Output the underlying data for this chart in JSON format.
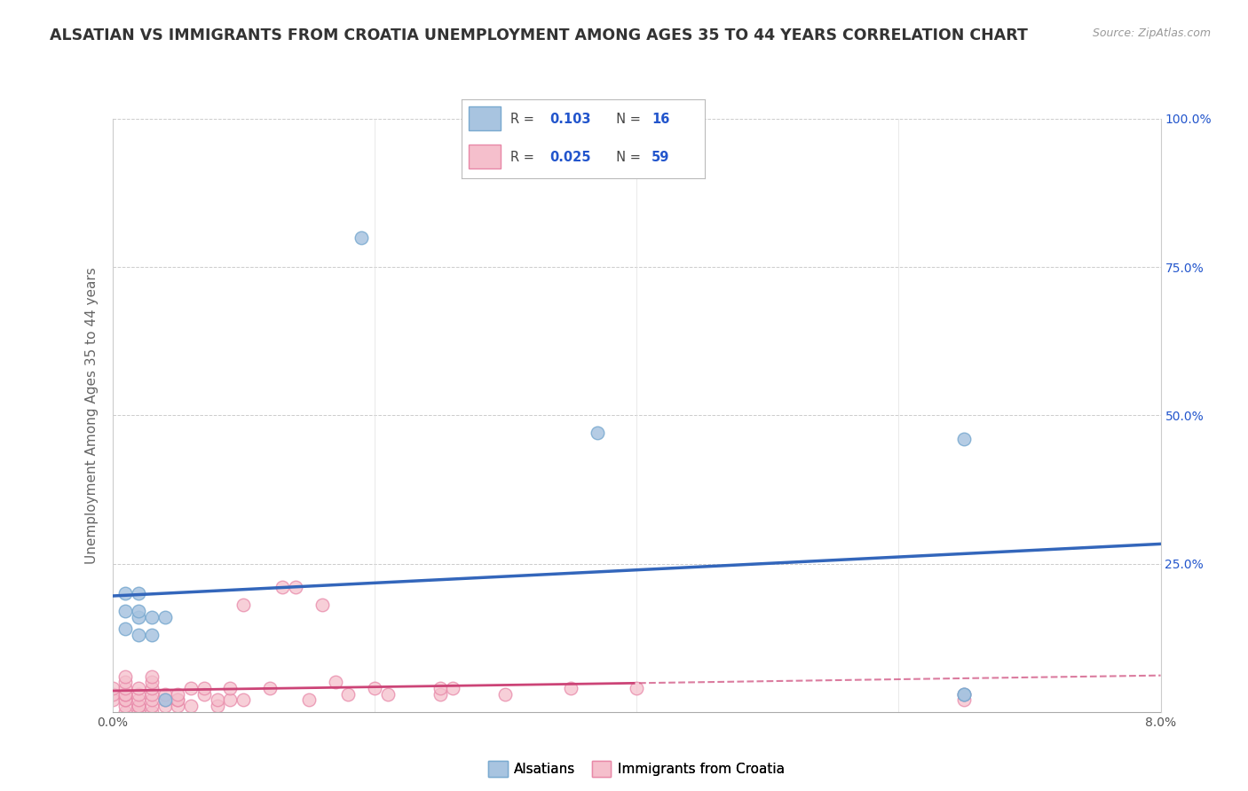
{
  "title": "ALSATIAN VS IMMIGRANTS FROM CROATIA UNEMPLOYMENT AMONG AGES 35 TO 44 YEARS CORRELATION CHART",
  "source": "Source: ZipAtlas.com",
  "ylabel": "Unemployment Among Ages 35 to 44 years",
  "xlim": [
    0.0,
    0.08
  ],
  "ylim": [
    0.0,
    1.0
  ],
  "xticks": [
    0.0,
    0.02,
    0.04,
    0.06,
    0.08
  ],
  "xtick_labels": [
    "0.0%",
    "",
    "",
    "",
    "8.0%"
  ],
  "yticks": [
    0.0,
    0.25,
    0.5,
    0.75,
    1.0
  ],
  "ytick_labels_right": [
    "",
    "25.0%",
    "50.0%",
    "75.0%",
    "100.0%"
  ],
  "blue_R": 0.103,
  "blue_N": 16,
  "pink_R": 0.025,
  "pink_N": 59,
  "blue_color": "#a8c4e0",
  "blue_edge": "#7aaad0",
  "pink_color": "#f5bfcc",
  "pink_edge": "#e888a8",
  "blue_line_color": "#3366bb",
  "pink_line_color": "#cc4477",
  "legend_R_color": "#2255cc",
  "blue_x": [
    0.001,
    0.001,
    0.001,
    0.002,
    0.002,
    0.002,
    0.002,
    0.003,
    0.003,
    0.004,
    0.004,
    0.019,
    0.037,
    0.065,
    0.065,
    0.065
  ],
  "blue_y": [
    0.14,
    0.17,
    0.2,
    0.13,
    0.16,
    0.17,
    0.2,
    0.13,
    0.16,
    0.02,
    0.16,
    0.8,
    0.47,
    0.03,
    0.03,
    0.46
  ],
  "pink_x": [
    0.0,
    0.0,
    0.0,
    0.001,
    0.001,
    0.001,
    0.001,
    0.001,
    0.001,
    0.001,
    0.001,
    0.001,
    0.002,
    0.002,
    0.002,
    0.002,
    0.002,
    0.002,
    0.003,
    0.003,
    0.003,
    0.003,
    0.003,
    0.003,
    0.003,
    0.004,
    0.004,
    0.004,
    0.005,
    0.005,
    0.005,
    0.005,
    0.006,
    0.006,
    0.007,
    0.007,
    0.008,
    0.008,
    0.009,
    0.009,
    0.01,
    0.01,
    0.012,
    0.013,
    0.014,
    0.015,
    0.016,
    0.017,
    0.018,
    0.02,
    0.021,
    0.025,
    0.025,
    0.026,
    0.03,
    0.035,
    0.04,
    0.065,
    0.065
  ],
  "pink_y": [
    0.02,
    0.03,
    0.04,
    0.0,
    0.01,
    0.02,
    0.02,
    0.03,
    0.03,
    0.04,
    0.05,
    0.06,
    0.0,
    0.01,
    0.01,
    0.02,
    0.03,
    0.04,
    0.0,
    0.01,
    0.02,
    0.03,
    0.04,
    0.05,
    0.06,
    0.01,
    0.02,
    0.03,
    0.01,
    0.02,
    0.02,
    0.03,
    0.01,
    0.04,
    0.03,
    0.04,
    0.01,
    0.02,
    0.02,
    0.04,
    0.02,
    0.18,
    0.04,
    0.21,
    0.21,
    0.02,
    0.18,
    0.05,
    0.03,
    0.04,
    0.03,
    0.03,
    0.04,
    0.04,
    0.03,
    0.04,
    0.04,
    0.02,
    0.03
  ],
  "background_color": "#ffffff",
  "grid_color": "#cccccc",
  "title_fontsize": 12.5,
  "axis_label_fontsize": 11,
  "tick_fontsize": 10,
  "marker_size": 110
}
